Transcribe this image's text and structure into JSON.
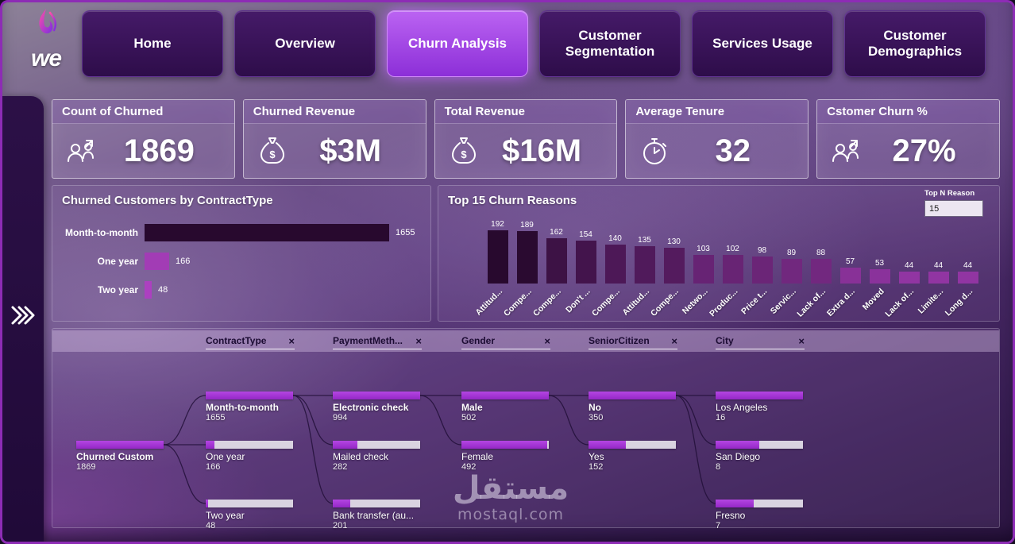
{
  "brand": "we",
  "nav": {
    "tabs": [
      {
        "label": "Home",
        "active": false
      },
      {
        "label": "Overview",
        "active": false
      },
      {
        "label": "Churn Analysis",
        "active": true
      },
      {
        "label": "Customer Segmentation",
        "active": false
      },
      {
        "label": "Services Usage",
        "active": false
      },
      {
        "label": "Customer Demographics",
        "active": false
      }
    ]
  },
  "sidebar": {
    "expand_icon": "chevrons-right-icon"
  },
  "kpis": [
    {
      "title": "Count of Churned",
      "value": "1869",
      "icon": "people-icon"
    },
    {
      "title": "Churned Revenue",
      "value": "$3M",
      "icon": "money-bag-icon"
    },
    {
      "title": "Total Revenue",
      "value": "$16M",
      "icon": "money-bag-icon"
    },
    {
      "title": "Average Tenure",
      "value": "32",
      "icon": "clock-icon"
    },
    {
      "title": "Cstomer Churn %",
      "value": "27%",
      "icon": "people-icon"
    }
  ],
  "top_n": {
    "label": "Top N Reason",
    "value": "15"
  },
  "chart_data": [
    {
      "type": "bar",
      "orientation": "horizontal",
      "title": "Churned Customers by ContractType",
      "categories": [
        "Month-to-month",
        "One year",
        "Two year"
      ],
      "values": [
        1655,
        166,
        48
      ],
      "xlabel": "",
      "ylabel": "",
      "grid": false,
      "legend": "none"
    },
    {
      "type": "bar",
      "orientation": "vertical",
      "title": "Top 15 Churn Reasons",
      "categories": [
        "Attitud...",
        "Compe...",
        "Compe...",
        "Don't ...",
        "Compe...",
        "Attitud...",
        "Compe...",
        "Netwo...",
        "Produc...",
        "Price t...",
        "Servic...",
        "Lack of...",
        "Extra d...",
        "Moved",
        "Lack of...",
        "Limite...",
        "Long d..."
      ],
      "values": [
        192,
        189,
        162,
        154,
        140,
        135,
        130,
        103,
        102,
        98,
        89,
        88,
        57,
        53,
        44,
        44,
        44
      ],
      "xlabel": "",
      "ylabel": "",
      "ylim": [
        0,
        200
      ],
      "grid": false,
      "legend": "none",
      "data_labels": true,
      "label_rotation": -45
    }
  ],
  "decomposition_tree": {
    "fields": [
      "ContractType",
      "PaymentMeth...",
      "Gender",
      "SeniorCitizen",
      "City"
    ],
    "root": {
      "label": "Churned Custom",
      "value": 1869
    },
    "levels": [
      {
        "field": "ContractType",
        "nodes": [
          {
            "label": "Month-to-month",
            "value": 1655,
            "selected": true
          },
          {
            "label": "One year",
            "value": 166
          },
          {
            "label": "Two year",
            "value": 48
          }
        ]
      },
      {
        "field": "PaymentMethod",
        "nodes": [
          {
            "label": "Electronic check",
            "value": 994,
            "selected": true
          },
          {
            "label": "Mailed check",
            "value": 282
          },
          {
            "label": "Bank transfer (au...",
            "value": 201
          }
        ]
      },
      {
        "field": "Gender",
        "nodes": [
          {
            "label": "Male",
            "value": 502,
            "selected": true
          },
          {
            "label": "Female",
            "value": 492
          }
        ]
      },
      {
        "field": "SeniorCitizen",
        "nodes": [
          {
            "label": "No",
            "value": 350,
            "selected": true
          },
          {
            "label": "Yes",
            "value": 152
          }
        ]
      },
      {
        "field": "City",
        "nodes": [
          {
            "label": "Los Angeles",
            "value": 16
          },
          {
            "label": "San Diego",
            "value": 8
          },
          {
            "label": "Fresno",
            "value": 7
          }
        ]
      }
    ]
  },
  "watermark": {
    "arabic": "مستقل",
    "domain": "mostaql.com"
  }
}
